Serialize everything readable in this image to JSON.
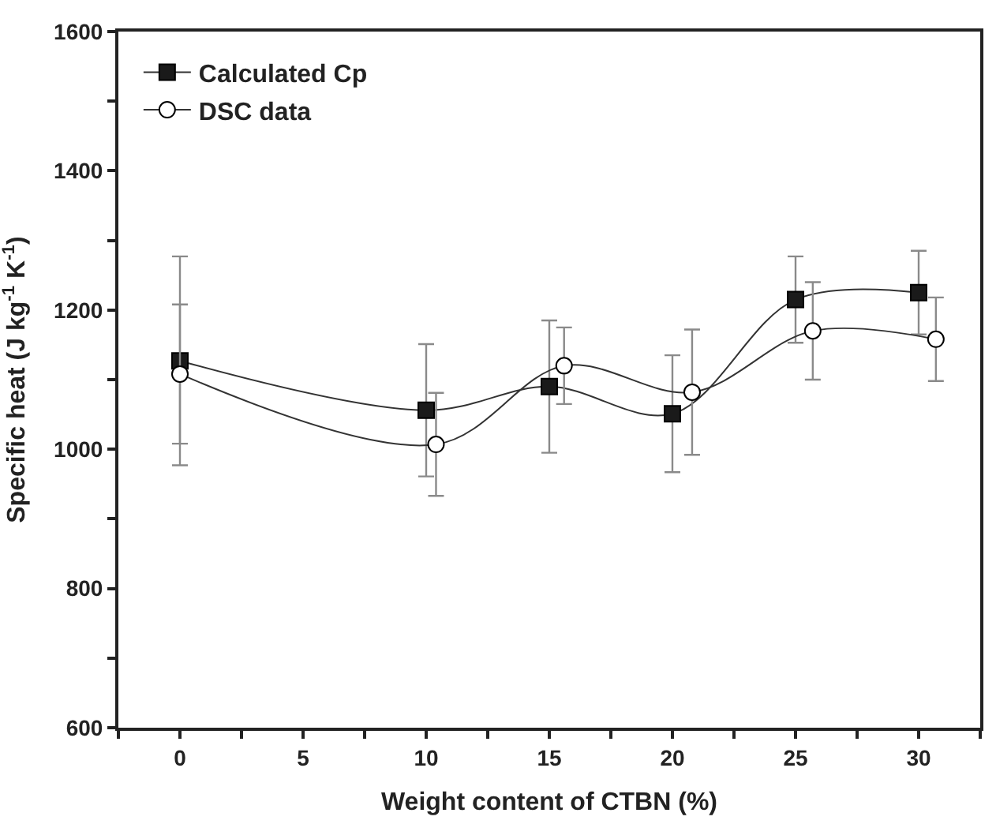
{
  "chart_data": {
    "type": "line",
    "xlabel": "Weight content of CTBN (%)",
    "ylabel": "Specific heat (J kg$^{-1}$ K$^{-1}$)",
    "xlim": [
      -2.5,
      32.5
    ],
    "xticks": [
      {
        "value": -2.5,
        "label": null
      },
      0,
      {
        "value": 2.5,
        "label": null
      },
      5,
      {
        "value": 7.5,
        "label": null
      },
      10,
      {
        "value": 12.5,
        "label": null
      },
      15,
      {
        "value": 17.5,
        "label": null
      },
      20,
      {
        "value": 22.5,
        "label": null
      },
      25,
      {
        "value": 27.5,
        "label": null
      },
      30,
      {
        "value": 32.5,
        "label": null
      }
    ],
    "ylim": [
      600,
      1600
    ],
    "yticks": [
      600,
      {
        "value": 700,
        "label": null
      },
      800,
      {
        "value": 900,
        "label": null
      },
      1000,
      {
        "value": 1100,
        "label": null
      },
      1200,
      {
        "value": 1300,
        "label": null
      },
      1400,
      {
        "value": 1500,
        "label": null
      },
      1600
    ],
    "legend": "top left",
    "line_style": "solid",
    "series": [
      {
        "name": "Calculated Cp",
        "color": "#1a1a1a",
        "marker": "square",
        "x": [
          0,
          10,
          15,
          20,
          25,
          30
        ],
        "values": [
          1127,
          1056,
          1090,
          1051,
          1215,
          1225
        ],
        "errors": [
          150,
          95,
          95,
          84,
          62,
          60
        ]
      },
      {
        "name": "DSC data",
        "color": "#ffffff",
        "marker": "circle",
        "x": [
          0,
          10.4,
          15.6,
          20.8,
          25.7,
          30.7
        ],
        "values": [
          1108,
          1007,
          1120,
          1082,
          1170,
          1158
        ],
        "errors": [
          100,
          74,
          55,
          90,
          70,
          60
        ]
      }
    ]
  }
}
